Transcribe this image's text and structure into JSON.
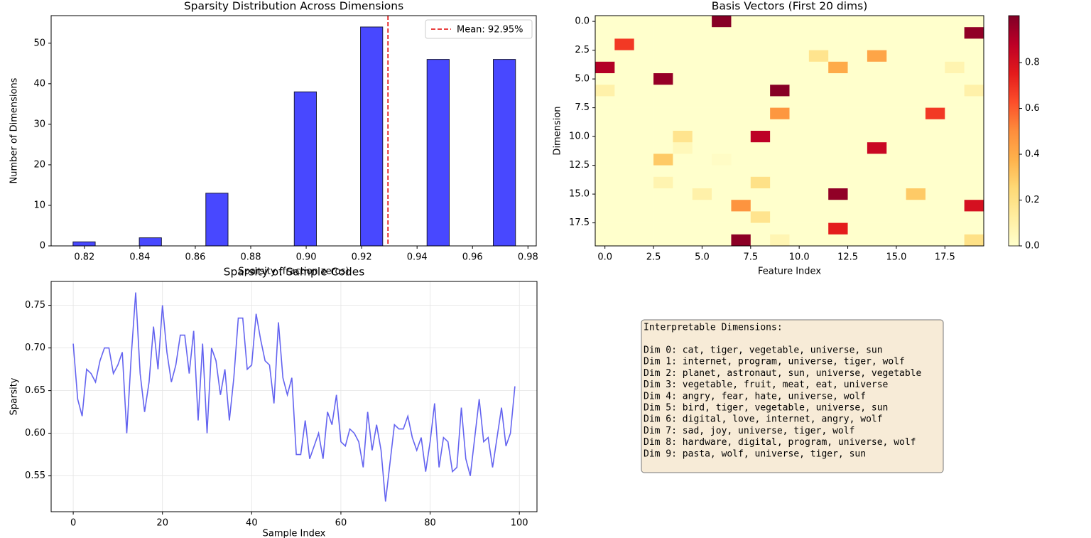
{
  "chart_data": [
    {
      "type": "histogram",
      "title": "Sparsity Distribution Across Dimensions",
      "x_label": "Sparsity (fraction zeros)",
      "y_label": "Number of Dimensions",
      "bins": [
        0.8159,
        0.8239,
        0.8319,
        0.8398,
        0.8478,
        0.8558,
        0.8638,
        0.8718,
        0.8797,
        0.8877,
        0.8957,
        0.9037,
        0.9117,
        0.9196,
        0.9276,
        0.9356,
        0.9436,
        0.9516,
        0.9595,
        0.9675,
        0.9755
      ],
      "values": [
        1,
        0,
        0,
        2,
        0,
        0,
        13,
        0,
        0,
        0,
        38,
        0,
        0,
        54,
        0,
        0,
        46,
        0,
        0,
        46
      ],
      "color": "#4848ff",
      "edgecolor": "#1a1a3a",
      "xlim": [
        0.808,
        0.983
      ],
      "xticks": [
        0.82,
        0.84,
        0.86,
        0.88,
        {
          "value": 0.9,
          "label": "0.90"
        },
        0.92,
        0.94,
        0.96,
        0.98
      ],
      "ylim": [
        0,
        56.8
      ],
      "yticks": [
        0,
        10,
        20,
        30,
        40,
        50
      ],
      "mean_line": {
        "value": 0.9295,
        "label": "Mean: 92.95%",
        "color": "#e00000"
      },
      "legend": "upper right",
      "grid": false
    },
    {
      "type": "heatmap",
      "title": "Basis Vectors (First 20 dims)",
      "x_label": "Feature Index",
      "y_label": "Dimension",
      "values": [
        [
          0,
          0,
          0,
          0,
          0,
          0,
          0.99,
          0,
          0,
          0,
          0,
          0,
          0,
          0,
          0,
          0,
          0,
          0,
          0,
          0
        ],
        [
          0,
          0,
          0,
          0,
          0,
          0,
          0,
          0,
          0,
          0,
          0,
          0,
          0,
          0,
          0,
          0,
          0,
          0,
          0,
          0.97
        ],
        [
          0,
          0.68,
          0,
          0,
          0,
          0,
          0,
          0,
          0,
          0,
          0,
          0,
          0,
          0,
          0,
          0,
          0,
          0,
          0,
          0
        ],
        [
          0,
          0,
          0,
          0,
          0,
          0,
          0,
          0,
          0,
          0,
          0,
          0.18,
          0,
          0,
          0.42,
          0,
          0,
          0,
          0,
          0
        ],
        [
          0.9,
          0,
          0,
          0,
          0,
          0,
          0,
          0,
          0,
          0,
          0,
          0,
          0.4,
          0,
          0,
          0,
          0,
          0,
          0.08,
          0
        ],
        [
          0,
          0,
          0,
          0.96,
          0,
          0,
          0,
          0,
          0,
          0,
          0,
          0,
          0,
          0,
          0,
          0,
          0,
          0,
          0,
          0
        ],
        [
          0.1,
          0,
          0,
          0,
          0,
          0,
          0,
          0,
          0,
          0.99,
          0,
          0,
          0,
          0,
          0,
          0,
          0,
          0,
          0,
          0.1
        ],
        [
          0,
          0,
          0,
          0,
          0,
          0,
          0,
          0,
          0,
          0,
          0,
          0,
          0,
          0,
          0,
          0,
          0,
          0,
          0,
          0
        ],
        [
          0,
          0,
          0,
          0,
          0,
          0,
          0,
          0,
          0,
          0.47,
          0,
          0,
          0,
          0,
          0,
          0,
          0,
          0.68,
          0,
          0
        ],
        [
          0,
          0,
          0,
          0,
          0,
          0,
          0,
          0,
          0,
          0,
          0,
          0,
          0,
          0,
          0,
          0,
          0,
          0,
          0,
          0
        ],
        [
          0,
          0,
          0,
          0,
          0.18,
          0,
          0,
          0,
          0.88,
          0,
          0,
          0,
          0,
          0,
          0,
          0,
          0,
          0,
          0,
          0
        ],
        [
          0,
          0,
          0,
          0,
          0.05,
          0,
          0,
          0,
          0,
          0,
          0,
          0,
          0,
          0,
          0.84,
          0,
          0,
          0,
          0,
          0
        ],
        [
          0,
          0,
          0,
          0.3,
          0,
          0,
          0.02,
          0,
          0,
          0,
          0,
          0,
          0,
          0,
          0,
          0,
          0,
          0,
          0,
          0
        ],
        [
          0,
          0,
          0,
          0,
          0,
          0,
          0,
          0,
          0,
          0,
          0,
          0,
          0,
          0,
          0,
          0,
          0,
          0,
          0,
          0
        ],
        [
          0,
          0,
          0,
          0.08,
          0,
          0,
          0,
          0,
          0.2,
          0,
          0,
          0,
          0,
          0,
          0,
          0,
          0,
          0,
          0,
          0
        ],
        [
          0,
          0,
          0,
          0,
          0,
          0.1,
          0,
          0,
          0,
          0,
          0,
          0,
          0.97,
          0,
          0,
          0,
          0.3,
          0,
          0,
          0
        ],
        [
          0,
          0,
          0,
          0,
          0,
          0,
          0,
          0.48,
          0,
          0,
          0,
          0,
          0,
          0,
          0,
          0,
          0,
          0,
          0,
          0.8
        ],
        [
          0,
          0,
          0,
          0,
          0,
          0,
          0,
          0,
          0.18,
          0,
          0,
          0,
          0,
          0,
          0,
          0,
          0,
          0,
          0,
          0
        ],
        [
          0,
          0,
          0,
          0,
          0,
          0,
          0,
          0,
          0,
          0,
          0,
          0,
          0.75,
          0,
          0,
          0,
          0,
          0,
          0,
          0
        ],
        [
          0,
          0,
          0,
          0,
          0,
          0,
          0,
          0.98,
          0,
          0.07,
          0,
          0,
          0,
          0,
          0,
          0,
          0,
          0,
          0,
          0.2
        ]
      ],
      "xlim": [
        -0.5,
        19.5
      ],
      "ylim": [
        19.5,
        -0.5
      ],
      "xticks": [
        {
          "value": 0,
          "label": "0.0"
        },
        2.5,
        {
          "value": 5,
          "label": "5.0"
        },
        7.5,
        {
          "value": 10,
          "label": "10.0"
        },
        12.5,
        {
          "value": 15,
          "label": "15.0"
        },
        17.5
      ],
      "yticks": [
        {
          "value": 0,
          "label": "0.0"
        },
        2.5,
        {
          "value": 5,
          "label": "5.0"
        },
        7.5,
        {
          "value": 10,
          "label": "10.0"
        },
        12.5,
        {
          "value": 15,
          "label": "15.0"
        },
        17.5
      ],
      "clim": [
        0,
        1.005
      ],
      "colorbar_ticks": [
        {
          "value": 0,
          "label": "0.0"
        },
        0.2,
        0.4,
        0.6,
        0.8
      ],
      "colors": [
        "#ffffcc",
        "#ffeda0",
        "#fed976",
        "#feb24c",
        "#fd8d3c",
        "#fc4e2a",
        "#e31a1c",
        "#bd0026",
        "#800026"
      ]
    },
    {
      "type": "line",
      "title": "Sparsity of Sample Codes",
      "x_label": "Sample Index",
      "y_label": "Sparsity",
      "x": [
        0,
        1,
        2,
        3,
        4,
        5,
        6,
        7,
        8,
        9,
        10,
        11,
        12,
        13,
        14,
        15,
        16,
        17,
        18,
        19,
        20,
        21,
        22,
        23,
        24,
        25,
        26,
        27,
        28,
        29,
        30,
        31,
        32,
        33,
        34,
        35,
        36,
        37,
        38,
        39,
        40,
        41,
        42,
        43,
        44,
        45,
        46,
        47,
        48,
        49,
        50,
        51,
        52,
        53,
        54,
        55,
        56,
        57,
        58,
        59,
        60,
        61,
        62,
        63,
        64,
        65,
        66,
        67,
        68,
        69,
        70,
        71,
        72,
        73,
        74,
        75,
        76,
        77,
        78,
        79,
        80,
        81,
        82,
        83,
        84,
        85,
        86,
        87,
        88,
        89,
        90,
        91,
        92,
        93,
        94,
        95,
        96,
        97,
        98,
        99
      ],
      "series": [
        {
          "name": "Sparsity",
          "color": "#6464f0",
          "values": [
            0.705,
            0.64,
            0.62,
            0.675,
            0.67,
            0.66,
            0.685,
            0.7,
            0.7,
            0.67,
            0.68,
            0.695,
            0.6,
            0.69,
            0.765,
            0.67,
            0.625,
            0.66,
            0.725,
            0.675,
            0.75,
            0.695,
            0.66,
            0.68,
            0.715,
            0.715,
            0.67,
            0.72,
            0.615,
            0.705,
            0.6,
            0.7,
            0.685,
            0.645,
            0.675,
            0.615,
            0.665,
            0.735,
            0.735,
            0.675,
            0.68,
            0.74,
            0.71,
            0.685,
            0.68,
            0.635,
            0.73,
            0.665,
            0.645,
            0.665,
            0.575,
            0.575,
            0.615,
            0.57,
            0.585,
            0.6,
            0.57,
            0.625,
            0.61,
            0.645,
            0.59,
            0.585,
            0.605,
            0.6,
            0.59,
            0.56,
            0.625,
            0.58,
            0.61,
            0.58,
            0.52,
            0.565,
            0.61,
            0.605,
            0.605,
            0.62,
            0.595,
            0.58,
            0.595,
            0.555,
            0.59,
            0.635,
            0.56,
            0.595,
            0.59,
            0.555,
            0.56,
            0.63,
            0.57,
            0.55,
            0.595,
            0.64,
            0.59,
            0.595,
            0.56,
            0.595,
            0.63,
            0.585,
            0.6,
            0.655
          ]
        }
      ],
      "xlim": [
        -4.95,
        103.95
      ],
      "xticks": [
        0,
        20,
        40,
        60,
        80,
        100
      ],
      "ylim": [
        0.508,
        0.778
      ],
      "yticks": [
        0.55,
        {
          "value": 0.6,
          "label": "0.60"
        },
        0.65,
        {
          "value": 0.7,
          "label": "0.70"
        },
        0.75
      ],
      "grid": true
    }
  ],
  "text_box": {
    "title": "Interpretable Dimensions:",
    "lines": [
      "Dim 0: cat, tiger, vegetable, universe, sun",
      "Dim 1: internet, program, universe, tiger, wolf",
      "Dim 2: planet, astronaut, sun, universe, vegetable",
      "Dim 3: vegetable, fruit, meat, eat, universe",
      "Dim 4: angry, fear, hate, universe, wolf",
      "Dim 5: bird, tiger, vegetable, universe, sun",
      "Dim 6: digital, love, internet, angry, wolf",
      "Dim 7: sad, joy, universe, tiger, wolf",
      "Dim 8: hardware, digital, program, universe, wolf",
      "Dim 9: pasta, wolf, universe, tiger, sun"
    ]
  }
}
